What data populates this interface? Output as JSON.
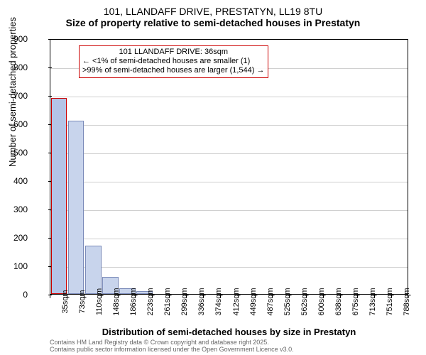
{
  "title": {
    "main": "101, LLANDAFF DRIVE, PRESTATYN, LL19 8TU",
    "sub": "Size of property relative to semi-detached houses in Prestatyn"
  },
  "chart": {
    "type": "bar",
    "x_categories": [
      "35sqm",
      "73sqm",
      "110sqm",
      "148sqm",
      "186sqm",
      "223sqm",
      "261sqm",
      "299sqm",
      "336sqm",
      "374sqm",
      "412sqm",
      "449sqm",
      "487sqm",
      "525sqm",
      "562sqm",
      "600sqm",
      "638sqm",
      "675sqm",
      "713sqm",
      "751sqm",
      "788sqm"
    ],
    "values": [
      690,
      610,
      170,
      60,
      20,
      10,
      0,
      0,
      0,
      0,
      0,
      0,
      0,
      0,
      0,
      0,
      0,
      0,
      0,
      0,
      0
    ],
    "bar_fill": "#c8d4ec",
    "bar_stroke": "#7a8ab8",
    "highlight_index": 0,
    "highlight_fill": "#b4c4e6",
    "highlight_stroke": "#cc0000",
    "ylim": [
      0,
      900
    ],
    "yticks": [
      0,
      100,
      200,
      300,
      400,
      500,
      600,
      700,
      800,
      900
    ],
    "ylabel": "Number of semi-detached properties",
    "xlabel": "Distribution of semi-detached houses by size in Prestatyn",
    "grid_color": "#d0d0d0",
    "background_color": "#ffffff",
    "fontsize": {
      "title": 14,
      "axis_label": 13,
      "tick": 12
    }
  },
  "annotation": {
    "line1": "101 LLANDAFF DRIVE: 36sqm",
    "line2": "← <1% of semi-detached houses are smaller (1)",
    "line3": ">99% of semi-detached houses are larger (1,544) →",
    "border_color": "#cc0000"
  },
  "footer": {
    "line1": "Contains HM Land Registry data © Crown copyright and database right 2025.",
    "line2": "Contains public sector information licensed under the Open Government Licence v3.0."
  }
}
